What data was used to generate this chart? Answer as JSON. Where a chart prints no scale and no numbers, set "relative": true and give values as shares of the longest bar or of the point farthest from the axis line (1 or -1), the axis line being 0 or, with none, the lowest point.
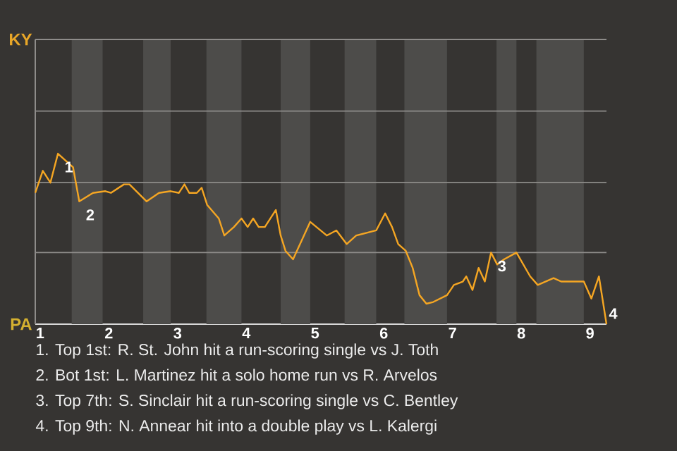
{
  "chart_data": {
    "type": "line",
    "relative": true,
    "x": [
      0.93,
      1.04,
      1.15,
      1.26,
      1.48,
      1.57,
      1.77,
      1.95,
      2.03,
      2.22,
      2.3,
      2.55,
      2.73,
      2.9,
      3.02,
      3.1,
      3.17,
      3.28,
      3.35,
      3.43,
      3.6,
      3.68,
      3.82,
      3.93,
      4.02,
      4.1,
      4.18,
      4.27,
      4.43,
      4.5,
      4.57,
      4.68,
      4.93,
      5.17,
      5.31,
      5.46,
      5.6,
      5.89,
      6.02,
      6.12,
      6.21,
      6.32,
      6.42,
      6.52,
      6.62,
      6.72,
      6.92,
      7.02,
      7.15,
      7.2,
      7.29,
      7.38,
      7.47,
      7.56,
      7.65,
      7.75,
      7.93,
      8.13,
      8.24,
      8.47,
      8.58,
      8.91,
      9.02,
      9.13,
      9.24
    ],
    "series": [
      {
        "color": "#f5a623",
        "values": [
          0.77,
          0.9,
          0.83,
          1,
          0.92,
          0.72,
          0.77,
          0.78,
          0.77,
          0.82,
          0.82,
          0.72,
          0.77,
          0.78,
          0.77,
          0.82,
          0.77,
          0.77,
          0.8,
          0.7,
          0.62,
          0.52,
          0.57,
          0.62,
          0.57,
          0.62,
          0.57,
          0.57,
          0.67,
          0.52,
          0.43,
          0.38,
          0.6,
          0.52,
          0.55,
          0.47,
          0.52,
          0.55,
          0.65,
          0.57,
          0.47,
          0.43,
          0.33,
          0.17,
          0.12,
          0.13,
          0.17,
          0.23,
          0.25,
          0.28,
          0.2,
          0.33,
          0.25,
          0.42,
          0.35,
          0.38,
          0.42,
          0.28,
          0.23,
          0.27,
          0.25,
          0.25,
          0.15,
          0.28,
          0
        ]
      }
    ],
    "xlim": [
      0.93,
      9.24
    ],
    "xticks": [
      1,
      2,
      3,
      4,
      5,
      6,
      7,
      8,
      9
    ],
    "ref_lines": [
      {
        "axis": "y",
        "value": 0.42,
        "color": "#8e8c8a"
      },
      {
        "axis": "y",
        "value": 0.83,
        "color": "#8e8c8a"
      },
      {
        "axis": "y",
        "value": 1.25,
        "color": "#8e8c8a"
      },
      {
        "axis": "y",
        "value": 1.67,
        "label": "KY",
        "color": "#8e8c8a"
      }
    ],
    "bands": [
      {
        "axis": "x",
        "from": 1.46,
        "to": 1.91,
        "color": "#4d4c4a"
      },
      {
        "axis": "x",
        "from": 2.5,
        "to": 2.9,
        "color": "#4d4c4a"
      },
      {
        "axis": "x",
        "from": 3.42,
        "to": 3.93,
        "color": "#4d4c4a"
      },
      {
        "axis": "x",
        "from": 4.5,
        "to": 4.93,
        "color": "#4d4c4a"
      },
      {
        "axis": "x",
        "from": 5.43,
        "to": 5.89,
        "color": "#4d4c4a"
      },
      {
        "axis": "x",
        "from": 6.3,
        "to": 6.92,
        "color": "#4d4c4a"
      },
      {
        "axis": "x",
        "from": 7.64,
        "to": 7.93,
        "color": "#4d4c4a"
      },
      {
        "axis": "x",
        "from": 8.22,
        "to": 8.91,
        "color": "#4d4c4a"
      }
    ],
    "annotations": [
      "PA",
      {
        "text": "1",
        "x": 1.26,
        "y": 1
      },
      {
        "text": "2",
        "x": 1.57,
        "y": 0.72
      },
      {
        "text": "3",
        "x": 7.56,
        "y": 0.42
      },
      {
        "text": "4",
        "x": 9.24,
        "y": 0
      },
      "1. Top 1st: R. St. John hit a run-scoring single vs J. Toth",
      "2. Bot 1st: L. Martinez hit a solo home run vs R. Arvelos",
      "3. Top 7th: S. Sinclair hit a run-scoring single vs C. Bentley",
      "4. Top 9th: N. Annear hit into a double play vs L. Kalergi"
    ]
  }
}
